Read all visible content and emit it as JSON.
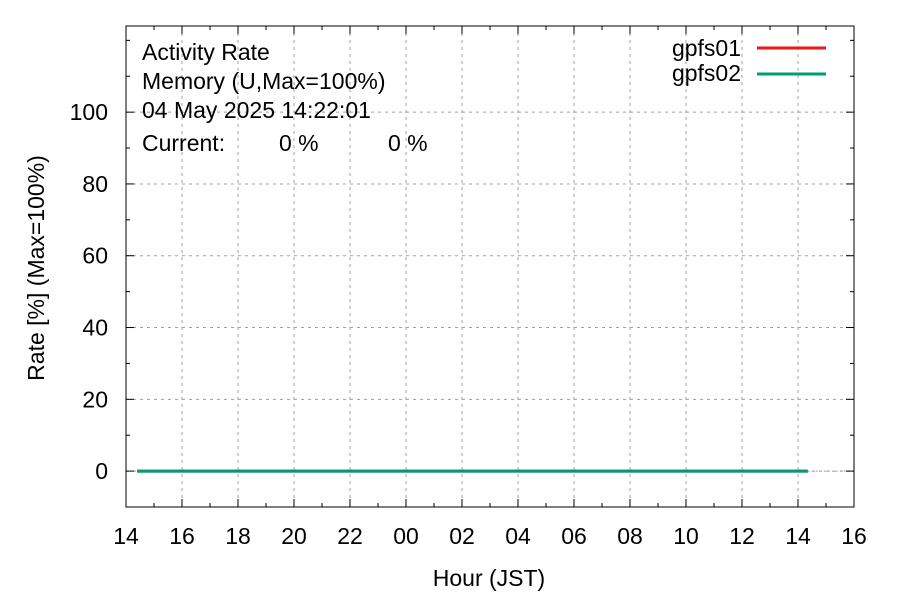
{
  "chart_data": {
    "type": "line",
    "title_lines": [
      "Activity Rate",
      "Memory (U,Max=100%)",
      "04 May 2025 14:22:01"
    ],
    "current_label": "Current:",
    "current_values": [
      "0 %",
      "0 %"
    ],
    "xlabel": "Hour (JST)",
    "ylabel": "Rate [%]  (Max=100%)",
    "xlim": [
      14,
      40
    ],
    "ylim": [
      -10,
      124
    ],
    "x_ticks": [
      {
        "x": 14,
        "label": "14"
      },
      {
        "x": 16,
        "label": "16"
      },
      {
        "x": 18,
        "label": "18"
      },
      {
        "x": 20,
        "label": "20"
      },
      {
        "x": 22,
        "label": "22"
      },
      {
        "x": 24,
        "label": "00"
      },
      {
        "x": 26,
        "label": "02"
      },
      {
        "x": 28,
        "label": "04"
      },
      {
        "x": 30,
        "label": "06"
      },
      {
        "x": 32,
        "label": "08"
      },
      {
        "x": 34,
        "label": "10"
      },
      {
        "x": 36,
        "label": "12"
      },
      {
        "x": 38,
        "label": "14"
      },
      {
        "x": 40,
        "label": "16"
      }
    ],
    "y_ticks": [
      0,
      20,
      40,
      60,
      80,
      100
    ],
    "grid": true,
    "legend_position": "top-right",
    "series": [
      {
        "name": "gpfs01",
        "color": "#e41a1c",
        "x": [
          14.4,
          38.35
        ],
        "y": [
          0,
          0
        ]
      },
      {
        "name": "gpfs02",
        "color": "#009e73",
        "x": [
          14.4,
          38.35
        ],
        "y": [
          0,
          0
        ]
      }
    ]
  }
}
